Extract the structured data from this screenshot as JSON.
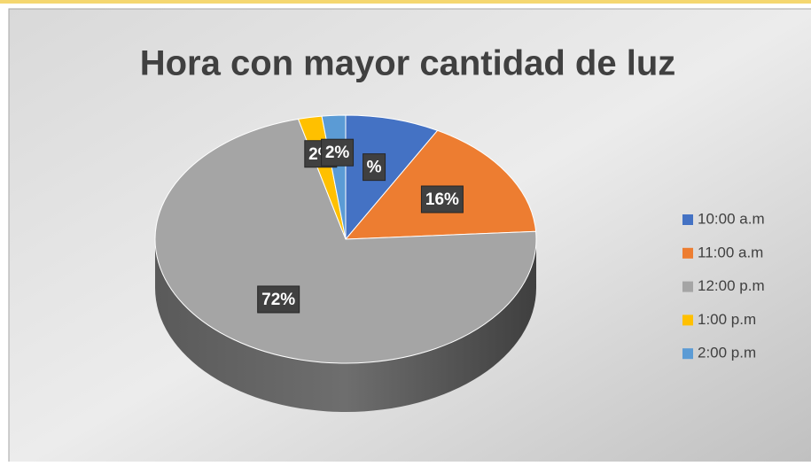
{
  "chart_data": {
    "type": "pie",
    "title": "Hora con mayor cantidad de luz",
    "categories": [
      "10:00 a.m",
      "11:00 a.m",
      "12:00 p.m",
      "1:00 p.m",
      "2:00 p.m"
    ],
    "values": [
      8,
      16,
      72,
      2,
      2
    ],
    "value_labels": [
      "%",
      "16%",
      "72%",
      "2%",
      "2%"
    ],
    "colors": [
      "#4472c4",
      "#ed7d31",
      "#a5a5a5",
      "#ffc000",
      "#5b9bd5"
    ],
    "legend": "right"
  }
}
